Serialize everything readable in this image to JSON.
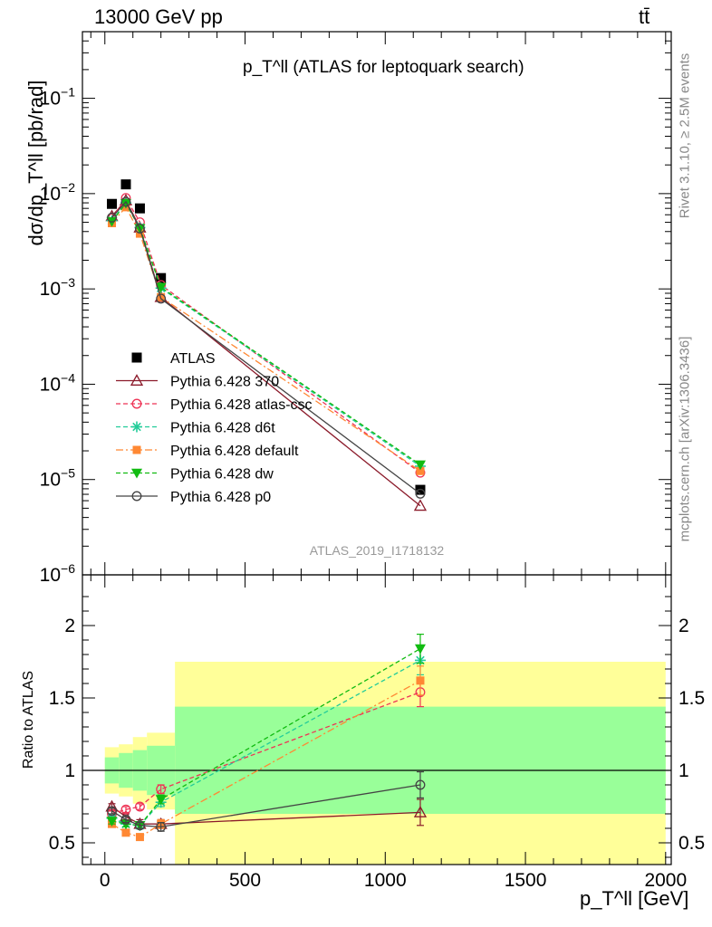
{
  "header": {
    "energy_label": "13000 GeV pp",
    "process_label": "tt̄"
  },
  "footer": {
    "rivet_label": "Rivet 3.1.10, ≥ 2.5M events",
    "mcplots_label": "mcplots.cern.ch [arXiv:1306.3436]",
    "analysis_label": "ATLAS_2019_I1718132"
  },
  "colors": {
    "data": "#000000",
    "p370": "#8b1a2a",
    "atlas_csc": "#ee3355",
    "d6t": "#22cc99",
    "default": "#ff8833",
    "dw": "#11bb11",
    "p0": "#444444",
    "band_inner": "#99ff99",
    "band_outer": "#ffff99"
  },
  "chart_data": [
    {
      "type": "line",
      "title": "p_T^ll (ATLAS for leptoquark search)",
      "ylabel": "dσ/dp_T^ll [pb/rad]",
      "yscale": "log",
      "ylim": [
        1e-06,
        0.5
      ],
      "xlim": [
        -80,
        2020
      ],
      "legend_position": "middle-left",
      "x": [
        25,
        75,
        125,
        200,
        1125
      ],
      "series": [
        {
          "name": "ATLAS",
          "style": "data",
          "values": [
            0.0078,
            0.0125,
            0.007,
            0.0013,
            7.8e-06
          ]
        },
        {
          "name": "Pythia 6.428 370",
          "style": "p370",
          "values": [
            0.0058,
            0.0085,
            0.0044,
            0.00082,
            5.3e-06
          ]
        },
        {
          "name": "Pythia 6.428 atlas-csc",
          "style": "atlas_csc",
          "values": [
            0.0055,
            0.009,
            0.005,
            0.0011,
            1.18e-05
          ]
        },
        {
          "name": "Pythia 6.428 d6t",
          "style": "d6t",
          "values": [
            0.0052,
            0.008,
            0.0044,
            0.00102,
            1.38e-05
          ]
        },
        {
          "name": "Pythia 6.428 default",
          "style": "default",
          "values": [
            0.0049,
            0.0072,
            0.0038,
            0.00082,
            1.23e-05
          ]
        },
        {
          "name": "Pythia 6.428 dw",
          "style": "dw",
          "values": [
            0.0051,
            0.0079,
            0.0043,
            0.00104,
            1.43e-05
          ]
        },
        {
          "name": "Pythia 6.428 p0",
          "style": "p0",
          "values": [
            0.0056,
            0.0082,
            0.0043,
            0.00079,
            7.1e-06
          ]
        }
      ]
    },
    {
      "type": "line",
      "ylabel": "Ratio to ATLAS",
      "xlabel": "p_T^ll [GeV]",
      "ylim": [
        0.35,
        2.35
      ],
      "xlim": [
        -80,
        2020
      ],
      "x": [
        25,
        75,
        125,
        200,
        1125
      ],
      "bands": {
        "edges": [
          0,
          50,
          100,
          150,
          250,
          2000
        ],
        "inner": [
          [
            0.91,
            1.09
          ],
          [
            0.88,
            1.12
          ],
          [
            0.86,
            1.14
          ],
          [
            0.83,
            1.17
          ],
          [
            0.7,
            1.44
          ]
        ],
        "outer": [
          [
            0.84,
            1.16
          ],
          [
            0.82,
            1.18
          ],
          [
            0.77,
            1.23
          ],
          [
            0.73,
            1.26
          ],
          [
            0.35,
            1.75
          ]
        ]
      },
      "series": [
        {
          "name": "Pythia 6.428 370",
          "style": "p370",
          "values": [
            0.75,
            0.68,
            0.63,
            0.63,
            0.71
          ],
          "errors": [
            0.02,
            0.02,
            0.03,
            0.03,
            0.09
          ]
        },
        {
          "name": "Pythia 6.428 atlas-csc",
          "style": "atlas_csc",
          "values": [
            0.7,
            0.73,
            0.75,
            0.87,
            1.54
          ],
          "errors": [
            0.02,
            0.02,
            0.02,
            0.03,
            0.1
          ]
        },
        {
          "name": "Pythia 6.428 d6t",
          "style": "d6t",
          "values": [
            0.67,
            0.63,
            0.62,
            0.78,
            1.76
          ],
          "errors": [
            0.02,
            0.02,
            0.02,
            0.03,
            0.1
          ]
        },
        {
          "name": "Pythia 6.428 default",
          "style": "default",
          "values": [
            0.63,
            0.57,
            0.54,
            0.63,
            1.62
          ],
          "errors": [
            0.02,
            0.02,
            0.02,
            0.03,
            0.1
          ]
        },
        {
          "name": "Pythia 6.428 dw",
          "style": "dw",
          "values": [
            0.65,
            0.63,
            0.62,
            0.8,
            1.84
          ],
          "errors": [
            0.02,
            0.02,
            0.02,
            0.03,
            0.1
          ]
        },
        {
          "name": "Pythia 6.428 p0",
          "style": "p0",
          "values": [
            0.72,
            0.66,
            0.62,
            0.61,
            0.9
          ],
          "errors": [
            0.02,
            0.02,
            0.02,
            0.03,
            0.09
          ]
        }
      ]
    }
  ]
}
